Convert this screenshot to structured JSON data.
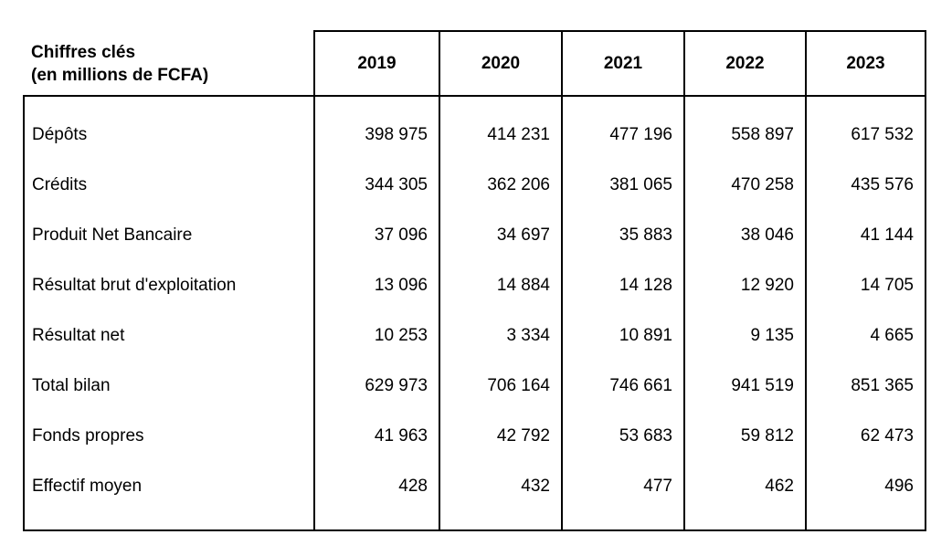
{
  "table": {
    "title_line1": "Chiffres clés",
    "title_line2": "(en millions de FCFA)",
    "header": {
      "years": [
        "2019",
        "2020",
        "2021",
        "2022",
        "2023"
      ]
    },
    "rows": [
      {
        "label": "Dépôts",
        "values": [
          "398 975",
          "414 231",
          "477 196",
          "558 897",
          "617 532"
        ]
      },
      {
        "label": "Crédits",
        "values": [
          "344 305",
          "362 206",
          "381 065",
          "470 258",
          "435 576"
        ]
      },
      {
        "label": "Produit Net Bancaire",
        "values": [
          "37 096",
          "34 697",
          "35 883",
          "38 046",
          "41 144"
        ]
      },
      {
        "label": "Résultat brut d'exploitation",
        "values": [
          "13 096",
          "14 884",
          "14 128",
          "12 920",
          "14 705"
        ]
      },
      {
        "label": "Résultat net",
        "values": [
          "10 253",
          "3 334",
          "10 891",
          "9 135",
          "4 665"
        ]
      },
      {
        "label": "Total bilan",
        "values": [
          "629 973",
          "706 164",
          "746 661",
          "941 519",
          "851 365"
        ]
      },
      {
        "label": "Fonds propres",
        "values": [
          "41 963",
          "42 792",
          "53 683",
          "59 812",
          "62 473"
        ]
      },
      {
        "label": "Effectif moyen",
        "values": [
          "428",
          "432",
          "477",
          "462",
          "496"
        ]
      }
    ],
    "colors": {
      "border": "#000000",
      "text": "#000000",
      "background": "#ffffff"
    }
  }
}
